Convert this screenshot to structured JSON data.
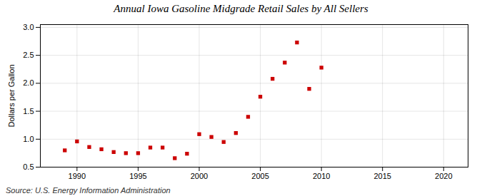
{
  "chart_data": {
    "type": "scatter",
    "title": "Annual Iowa Gasoline Midgrade Retail Sales by All Sellers",
    "ylabel": "Dollars per Gallon",
    "source": "Source: U.S. Energy Information Administration",
    "x": [
      1989,
      1990,
      1991,
      1992,
      1993,
      1994,
      1995,
      1996,
      1997,
      1998,
      1999,
      2000,
      2001,
      2002,
      2003,
      2004,
      2005,
      2006,
      2007,
      2008,
      2009,
      2010
    ],
    "values": [
      0.8,
      0.96,
      0.86,
      0.82,
      0.77,
      0.75,
      0.75,
      0.85,
      0.85,
      0.66,
      0.74,
      1.09,
      1.04,
      0.95,
      1.11,
      1.4,
      1.76,
      2.08,
      2.37,
      2.73,
      1.9,
      2.28
    ],
    "color": "#cc0000",
    "marker": "square",
    "xlim": [
      1987,
      2022
    ],
    "ylim": [
      0.5,
      3.05
    ],
    "xticks": [
      1990,
      1995,
      2000,
      2005,
      2010,
      2015,
      2020
    ],
    "yticks": [
      0.5,
      {
        "value": 1,
        "label": "1.0"
      },
      1.5,
      {
        "value": 2,
        "label": "2.0"
      },
      2.5,
      {
        "value": 3,
        "label": "3.0"
      }
    ],
    "grid": true
  }
}
